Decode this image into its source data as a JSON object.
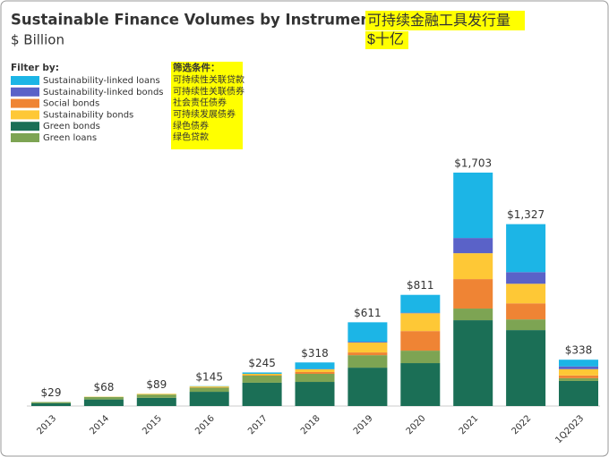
{
  "chart_data": {
    "type": "stacked_bar",
    "title": "Sustainable Finance Volumes by Instrument",
    "subtitle": "$ Billion",
    "legend_title": "Filter by:",
    "annotation_title": "可持续金融工具发行量",
    "annotation_subtitle": "$十亿",
    "annotation_legend_title": "筛选条件：",
    "annotation_legend": [
      "可持续性关联贷款",
      "可持续性关联债券",
      "社会责任债券",
      "可持续发展债券",
      "绿色债券",
      "绿色贷款"
    ],
    "categories": [
      "2013",
      "2014",
      "2015",
      "2016",
      "2017",
      "2018",
      "2019",
      "2020",
      "2021",
      "2022",
      "1Q2023"
    ],
    "series": [
      {
        "name": "Sustainability-linked loans",
        "color": "#1cb5e6",
        "values": [
          0,
          0,
          0,
          2,
          10,
          48,
          142,
          130,
          477,
          350,
          49
        ]
      },
      {
        "name": "Sustainability-linked bonds",
        "color": "#5a62c8",
        "values": [
          0,
          0,
          0,
          0,
          0,
          2,
          6,
          4,
          111,
          85,
          20
        ]
      },
      {
        "name": "Social bonds",
        "color": "#ef8434",
        "values": [
          0,
          0,
          0,
          2,
          3,
          13,
          20,
          143,
          215,
          117,
          20
        ]
      },
      {
        "name": "Sustainability bonds",
        "color": "#fec836",
        "values": [
          0,
          2,
          5,
          7,
          10,
          20,
          72,
          130,
          189,
          143,
          46
        ]
      },
      {
        "name": "Green bonds",
        "color": "#1b6f56",
        "values": [
          20,
          48,
          60,
          104,
          170,
          176,
          280,
          313,
          626,
          554,
          183
        ]
      },
      {
        "name": "Green loans",
        "color": "#7da453",
        "values": [
          9,
          18,
          24,
          30,
          52,
          59,
          91,
          91,
          85,
          78,
          20
        ]
      }
    ],
    "totals": [
      29,
      68,
      89,
      145,
      245,
      318,
      611,
      811,
      1703,
      1327,
      338
    ],
    "total_labels": [
      "$29",
      "$68",
      "$89",
      "$145",
      "$245",
      "$318",
      "$611",
      "$811",
      "$1,703",
      "$1,327",
      "$338"
    ]
  }
}
